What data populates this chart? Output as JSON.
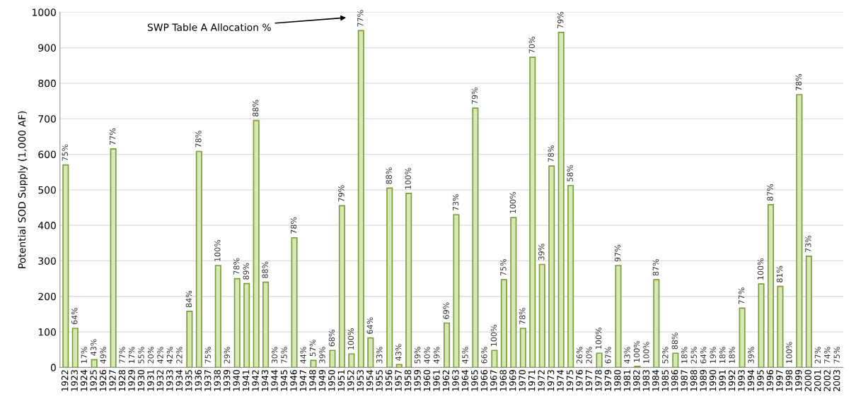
{
  "chart_data": {
    "type": "bar",
    "ylabel": "Potential SOD Supply (1,000 AF)",
    "categories": [
      "1922",
      "1923",
      "1924",
      "1925",
      "1926",
      "1927",
      "1928",
      "1929",
      "1930",
      "1931",
      "1932",
      "1933",
      "1934",
      "1935",
      "1936",
      "1937",
      "1938",
      "1939",
      "1940",
      "1941",
      "1942",
      "1943",
      "1944",
      "1945",
      "1946",
      "1947",
      "1948",
      "1949",
      "1950",
      "1951",
      "1952",
      "1953",
      "1954",
      "1955",
      "1956",
      "1957",
      "1958",
      "1959",
      "1960",
      "1961",
      "1962",
      "1963",
      "1964",
      "1965",
      "1966",
      "1967",
      "1968",
      "1969",
      "1970",
      "1971",
      "1972",
      "1973",
      "1974",
      "1975",
      "1976",
      "1977",
      "1978",
      "1979",
      "1980",
      "1981",
      "1982",
      "1983",
      "1984",
      "1985",
      "1986",
      "1987",
      "1988",
      "1989",
      "1990",
      "1991",
      "1992",
      "1993",
      "1994",
      "1995",
      "1996",
      "1997",
      "1998",
      "1999",
      "2000",
      "2001",
      "2002",
      "2003"
    ],
    "values": [
      570,
      110,
      0,
      22,
      0,
      615,
      0,
      0,
      0,
      0,
      0,
      0,
      0,
      158,
      608,
      0,
      287,
      0,
      250,
      236,
      695,
      240,
      0,
      0,
      365,
      0,
      20,
      0,
      48,
      455,
      38,
      948,
      83,
      0,
      505,
      8,
      490,
      0,
      0,
      0,
      125,
      430,
      0,
      730,
      0,
      48,
      247,
      422,
      110,
      873,
      290,
      567,
      943,
      512,
      0,
      0,
      40,
      0,
      287,
      0,
      3,
      0,
      247,
      0,
      40,
      0,
      0,
      0,
      0,
      0,
      0,
      167,
      0,
      235,
      458,
      228,
      0,
      768,
      313,
      0,
      0,
      0
    ],
    "color": "#d6e8b4",
    "annotations": [
      "SWP Table A Allocation %",
      {
        "text": "75%",
        "x": "1922",
        "y": 570
      },
      {
        "text": "64%",
        "x": "1923",
        "y": 110
      },
      {
        "text": "17%",
        "x": "1924",
        "y": 0
      },
      {
        "text": "43%",
        "x": "1925",
        "y": 22
      },
      {
        "text": "49%",
        "x": "1926",
        "y": 0
      },
      {
        "text": "77%",
        "x": "1927",
        "y": 615
      },
      {
        "text": "77%",
        "x": "1928",
        "y": 0
      },
      {
        "text": "17%",
        "x": "1929",
        "y": 0
      },
      {
        "text": "55%",
        "x": "1930",
        "y": 0
      },
      {
        "text": "20%",
        "x": "1931",
        "y": 0
      },
      {
        "text": "42%",
        "x": "1932",
        "y": 0
      },
      {
        "text": "42%",
        "x": "1933",
        "y": 0
      },
      {
        "text": "22%",
        "x": "1934",
        "y": 0
      },
      {
        "text": "84%",
        "x": "1935",
        "y": 158
      },
      {
        "text": "78%",
        "x": "1936",
        "y": 608
      },
      {
        "text": "75%",
        "x": "1937",
        "y": 0
      },
      {
        "text": "100%",
        "x": "1938",
        "y": 287
      },
      {
        "text": "29%",
        "x": "1939",
        "y": 0
      },
      {
        "text": "78%",
        "x": "1940",
        "y": 250
      },
      {
        "text": "89%",
        "x": "1941",
        "y": 236
      },
      {
        "text": "88%",
        "x": "1942",
        "y": 695
      },
      {
        "text": "88%",
        "x": "1943",
        "y": 240
      },
      {
        "text": "30%",
        "x": "1944",
        "y": 0
      },
      {
        "text": "75%",
        "x": "1945",
        "y": 0
      },
      {
        "text": "78%",
        "x": "1946",
        "y": 365
      },
      {
        "text": "44%",
        "x": "1947",
        "y": 0
      },
      {
        "text": "57%",
        "x": "1948",
        "y": 20
      },
      {
        "text": "39%",
        "x": "1949",
        "y": 0
      },
      {
        "text": "68%",
        "x": "1950",
        "y": 48
      },
      {
        "text": "79%",
        "x": "1951",
        "y": 455
      },
      {
        "text": "100%",
        "x": "1952",
        "y": 38
      },
      {
        "text": "77%",
        "x": "1953",
        "y": 948
      },
      {
        "text": "64%",
        "x": "1954",
        "y": 83
      },
      {
        "text": "33%",
        "x": "1955",
        "y": 0
      },
      {
        "text": "88%",
        "x": "1956",
        "y": 505
      },
      {
        "text": "43%",
        "x": "1957",
        "y": 8
      },
      {
        "text": "100%",
        "x": "1958",
        "y": 490
      },
      {
        "text": "59%",
        "x": "1959",
        "y": 0
      },
      {
        "text": "40%",
        "x": "1960",
        "y": 0
      },
      {
        "text": "49%",
        "x": "1961",
        "y": 0
      },
      {
        "text": "69%",
        "x": "1962",
        "y": 125
      },
      {
        "text": "73%",
        "x": "1963",
        "y": 430
      },
      {
        "text": "45%",
        "x": "1964",
        "y": 0
      },
      {
        "text": "79%",
        "x": "1965",
        "y": 730
      },
      {
        "text": "66%",
        "x": "1966",
        "y": 0
      },
      {
        "text": "100%",
        "x": "1967",
        "y": 48
      },
      {
        "text": "75%",
        "x": "1968",
        "y": 247
      },
      {
        "text": "100%",
        "x": "1969",
        "y": 422
      },
      {
        "text": "78%",
        "x": "1970",
        "y": 110
      },
      {
        "text": "70%",
        "x": "1971",
        "y": 873
      },
      {
        "text": "39%",
        "x": "1972",
        "y": 290
      },
      {
        "text": "78%",
        "x": "1973",
        "y": 567
      },
      {
        "text": "79%",
        "x": "1974",
        "y": 943
      },
      {
        "text": "58%",
        "x": "1975",
        "y": 512
      },
      {
        "text": "26%",
        "x": "1976",
        "y": 0
      },
      {
        "text": "20%",
        "x": "1977",
        "y": 0
      },
      {
        "text": "100%",
        "x": "1978",
        "y": 40
      },
      {
        "text": "67%",
        "x": "1979",
        "y": 0
      },
      {
        "text": "97%",
        "x": "1980",
        "y": 287
      },
      {
        "text": "43%",
        "x": "1981",
        "y": 0
      },
      {
        "text": "100%",
        "x": "1982",
        "y": 3
      },
      {
        "text": "100%",
        "x": "1983",
        "y": 0
      },
      {
        "text": "87%",
        "x": "1984",
        "y": 247
      },
      {
        "text": "52%",
        "x": "1985",
        "y": 0
      },
      {
        "text": "88%",
        "x": "1986",
        "y": 40
      },
      {
        "text": "18%",
        "x": "1987",
        "y": 0
      },
      {
        "text": "25%",
        "x": "1988",
        "y": 0
      },
      {
        "text": "64%",
        "x": "1989",
        "y": 0
      },
      {
        "text": "19%",
        "x": "1990",
        "y": 0
      },
      {
        "text": "18%",
        "x": "1991",
        "y": 0
      },
      {
        "text": "18%",
        "x": "1992",
        "y": 0
      },
      {
        "text": "77%",
        "x": "1993",
        "y": 167
      },
      {
        "text": "39%",
        "x": "1994",
        "y": 0
      },
      {
        "text": "100%",
        "x": "1995",
        "y": 235
      },
      {
        "text": "87%",
        "x": "1996",
        "y": 458
      },
      {
        "text": "81%",
        "x": "1997",
        "y": 228
      },
      {
        "text": "100%",
        "x": "1998",
        "y": 0
      },
      {
        "text": "78%",
        "x": "1999",
        "y": 768
      },
      {
        "text": "73%",
        "x": "2000",
        "y": 313
      },
      {
        "text": "27%",
        "x": "2001",
        "y": 0
      },
      {
        "text": "74%",
        "x": "2002",
        "y": 0
      },
      {
        "text": "75%",
        "x": "2003",
        "y": 0
      }
    ],
    "ylim": [
      0,
      1000
    ],
    "yticks": [
      0,
      100,
      200,
      300,
      400,
      500,
      600,
      700,
      800,
      900,
      1000
    ],
    "grid": "y"
  }
}
